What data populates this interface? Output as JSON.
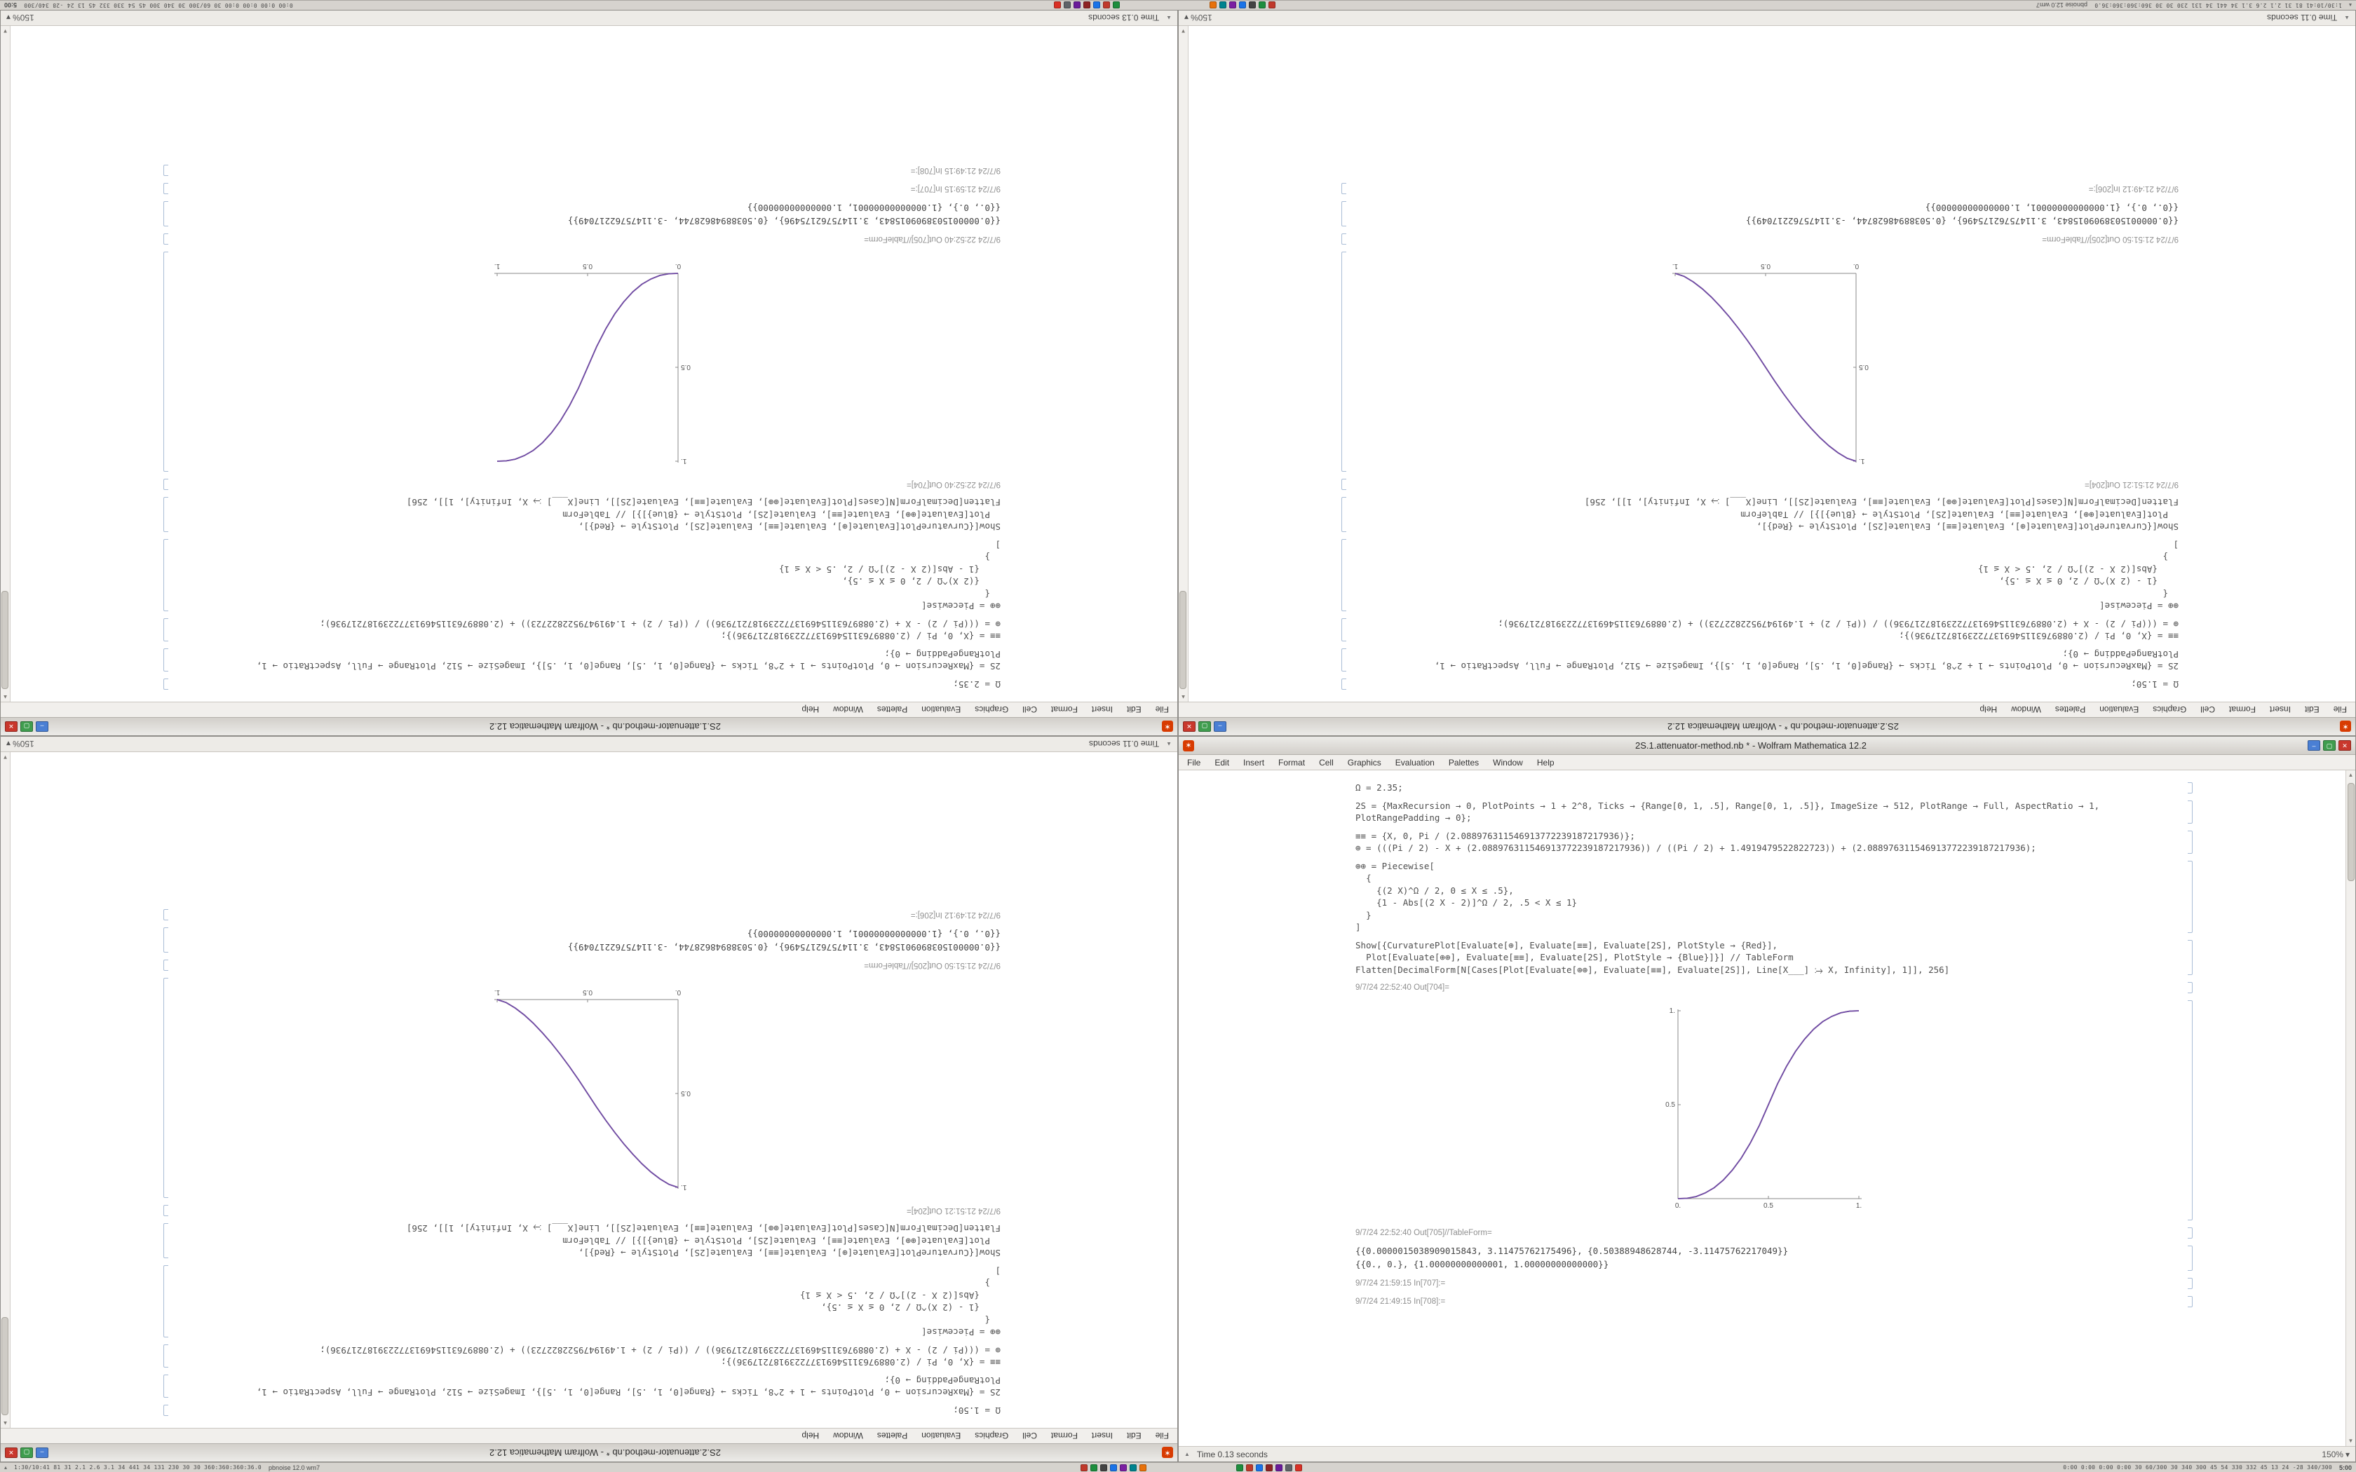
{
  "taskbar": {
    "left_stats": "1:30/10:41  81 31  2.1 2.6 3.1  34 441 34 131 230 30 30  360:360:360:36.0",
    "right_stats": "0:00 0:00 0:00 0:00  30 60/300 30 340 300 45 54 330 332 45 13 24 -28  340/300",
    "session_label": "pbnoise 12.0 wm7",
    "clock": "5:00",
    "icons": [
      {
        "name": "taskbar-app-icon-1",
        "color": "#c0392b"
      },
      {
        "name": "taskbar-app-icon-2",
        "color": "#1e8e3e"
      },
      {
        "name": "taskbar-app-icon-3",
        "color": "#444444"
      },
      {
        "name": "taskbar-app-icon-4",
        "color": "#1a73e8"
      },
      {
        "name": "taskbar-app-icon-5",
        "color": "#7b1fa2"
      },
      {
        "name": "taskbar-app-icon-6",
        "color": "#00838f"
      },
      {
        "name": "taskbar-app-icon-7",
        "color": "#e8710a"
      },
      {
        "name": "taskbar-app-icon-8",
        "color": "#1e8e3e"
      },
      {
        "name": "taskbar-app-icon-9",
        "color": "#c0392b"
      },
      {
        "name": "taskbar-app-icon-10",
        "color": "#1a73e8"
      },
      {
        "name": "taskbar-app-icon-11",
        "color": "#8e2424"
      },
      {
        "name": "taskbar-app-icon-12",
        "color": "#6a1b9a"
      },
      {
        "name": "taskbar-app-icon-13",
        "color": "#5f6368"
      },
      {
        "name": "taskbar-app-icon-14",
        "color": "#d93025"
      }
    ]
  },
  "menu": {
    "items": [
      "File",
      "Edit",
      "Insert",
      "Format",
      "Cell",
      "Graphics",
      "Evaluation",
      "Palettes",
      "Window",
      "Help"
    ]
  },
  "notebooks": {
    "A": {
      "title": "2S.1.attenuator-method.nb * - Wolfram Mathematica 12.2",
      "status_time": "Time 0.13 seconds",
      "zoom": "150%",
      "cells": [
        {
          "kind": "code",
          "lines": [
            "Ω = 2.35;"
          ]
        },
        {
          "kind": "code",
          "lines": [
            "2S = {MaxRecursion → 0, PlotPoints → 1 + 2^8, Ticks → {Range[0, 1, .5], Range[0, 1, .5]}, ImageSize → 512, PlotRange → Full, AspectRatio → 1, PlotRangePadding → 0};"
          ]
        },
        {
          "kind": "code",
          "lines": [
            "≡≡ = {X, 0, Pi / (2.088976311546913772239187217936)};",
            "⊕ = (((Pi / 2) - X + (2.088976311546913772239187217936)) / ((Pi / 2) + 1.4919479522822723)) + (2.088976311546913772239187217936);"
          ]
        },
        {
          "kind": "code",
          "lines": [
            "⊕⊕ = Piecewise[",
            "  {",
            "    {(2 X)^Ω / 2, 0 ≤ X ≤ .5},",
            "    {1 - Abs[(2 X - 2)]^Ω / 2, .5 < X ≤ 1}",
            "  }",
            "]"
          ]
        },
        {
          "kind": "code",
          "lines": [
            "Show[{CurvaturePlot[Evaluate[⊕], Evaluate[≡≡], Evaluate[2S], PlotStyle → {Red}],",
            "  Plot[Evaluate[⊕⊕], Evaluate[≡≡], Evaluate[2S], PlotStyle → {Blue}]}] // TableForm",
            "Flatten[DecimalForm[N[Cases[Plot[Evaluate[⊕⊕], Evaluate[≡≡], Evaluate[2S]], Line[X___] ⧴ X, Infinity], 1]], 256]"
          ]
        },
        {
          "kind": "stamp",
          "text": "9/7/24 22:52:40   Out[704]="
        },
        {
          "kind": "plot",
          "chart": "ascending"
        },
        {
          "kind": "stamp",
          "text": "9/7/24 22:52:40   Out[705]//TableForm="
        },
        {
          "kind": "output",
          "lines": [
            "{{0.0000015038909015843, 3.11475762175496}, {0.50388948628744, -3.11475762217049}}",
            "{{0., 0.}, {1.00000000000001, 1.00000000000000}}"
          ]
        },
        {
          "kind": "stamp",
          "text": "9/7/24 21:59:15   In[707]:="
        },
        {
          "kind": "stamp",
          "text": "9/7/24 21:49:15   In[708]:="
        }
      ]
    },
    "B": {
      "title": "2S.2.attenuator-method.nb * - Wolfram Mathematica 12.2",
      "status_time": "Time 0.11 seconds",
      "zoom": "150%",
      "cells": [
        {
          "kind": "code",
          "lines": [
            "Ω = 1.50;"
          ]
        },
        {
          "kind": "code",
          "lines": [
            "2S = {MaxRecursion → 0, PlotPoints → 1 + 2^8, Ticks → {Range[0, 1, .5], Range[0, 1, .5]}, ImageSize → 512, PlotRange → Full, AspectRatio → 1, PlotRangePadding → 0};"
          ]
        },
        {
          "kind": "code",
          "lines": [
            "≡≡ = {X, 0, Pi / (2.088976311546913772239187217936)};",
            "⊕ = (((Pi / 2) - X + (2.088976311546913772239187217936)) / ((Pi / 2) + 1.4919479522822723)) + (2.088976311546913772239187217936);"
          ]
        },
        {
          "kind": "code",
          "lines": [
            "⊕⊕ = Piecewise[",
            "  {",
            "    {1 - (2 X)^Ω / 2, 0 ≤ X ≤ .5},",
            "    {Abs[(2 X - 2)]^Ω / 2, .5 < X ≤ 1}",
            "  }",
            "]"
          ]
        },
        {
          "kind": "code",
          "lines": [
            "Show[{CurvaturePlot[Evaluate[⊕], Evaluate[≡≡], Evaluate[2S], PlotStyle → {Red}],",
            "  Plot[Evaluate[⊕⊕], Evaluate[≡≡], Evaluate[2S], PlotStyle → {Blue}]}] // TableForm",
            "Flatten[DecimalForm[N[Cases[Plot[Evaluate[⊕⊕], Evaluate[≡≡], Evaluate[2S]], Line[X___] ⧴ X, Infinity], 1]], 256]"
          ]
        },
        {
          "kind": "stamp",
          "text": "9/7/24 21:51:21   Out[204]="
        },
        {
          "kind": "plot",
          "chart": "descending"
        },
        {
          "kind": "stamp",
          "text": "9/7/24 21:51:50   Out[205]//TableForm="
        },
        {
          "kind": "output",
          "lines": [
            "{{0.0000015038909015843, 3.11475762175496}, {0.50388948628744, -3.11475762217049}}",
            "{{0., 0.}, {1.00000000000001, 1.00000000000000}}"
          ]
        },
        {
          "kind": "stamp",
          "text": "9/7/24 21:49:12   In[206]:="
        }
      ]
    }
  },
  "windows": [
    {
      "id": "top-left",
      "notebook": "A",
      "rotated": true
    },
    {
      "id": "top-right",
      "notebook": "B",
      "rotated": true
    },
    {
      "id": "bottom-left",
      "notebook": "B",
      "rotated": true
    },
    {
      "id": "bottom-right",
      "notebook": "A",
      "rotated": false
    }
  ],
  "chart_data": [
    {
      "id": "ascending",
      "type": "line",
      "title": "",
      "xlabel": "",
      "ylabel": "",
      "xlim": [
        0,
        1
      ],
      "ylim": [
        0,
        1
      ],
      "grid": false,
      "legend": false,
      "xticks": [
        [
          0,
          "0."
        ],
        [
          0.5,
          "0.5"
        ],
        [
          1,
          "1."
        ]
      ],
      "yticks": [
        [
          0.5,
          "0.5"
        ],
        [
          1,
          "1."
        ]
      ],
      "series": [
        {
          "name": "CurvaturePlot (Red)",
          "color": "#c83a50"
        },
        {
          "name": "Plot (Blue)",
          "color": "#4455cc"
        }
      ],
      "points": [
        [
          0,
          0
        ],
        [
          0.05,
          0.002
        ],
        [
          0.1,
          0.011
        ],
        [
          0.15,
          0.03
        ],
        [
          0.2,
          0.058
        ],
        [
          0.25,
          0.098
        ],
        [
          0.3,
          0.151
        ],
        [
          0.35,
          0.216
        ],
        [
          0.4,
          0.296
        ],
        [
          0.45,
          0.39
        ],
        [
          0.5,
          0.5
        ],
        [
          0.55,
          0.61
        ],
        [
          0.6,
          0.704
        ],
        [
          0.65,
          0.784
        ],
        [
          0.7,
          0.849
        ],
        [
          0.75,
          0.902
        ],
        [
          0.8,
          0.942
        ],
        [
          0.85,
          0.97
        ],
        [
          0.9,
          0.989
        ],
        [
          0.95,
          0.998
        ],
        [
          1,
          1
        ]
      ]
    },
    {
      "id": "descending",
      "type": "line",
      "title": "",
      "xlabel": "",
      "ylabel": "",
      "xlim": [
        0,
        1
      ],
      "ylim": [
        0,
        1
      ],
      "grid": false,
      "legend": false,
      "xticks": [
        [
          0,
          "0."
        ],
        [
          0.5,
          "0.5"
        ],
        [
          1,
          "1."
        ]
      ],
      "yticks": [
        [
          0.5,
          "0.5"
        ],
        [
          1,
          "1."
        ]
      ],
      "series": [
        {
          "name": "CurvaturePlot (Red)",
          "color": "#c83a50"
        },
        {
          "name": "Plot (Blue)",
          "color": "#4455cc"
        }
      ],
      "points": [
        [
          0,
          1
        ],
        [
          0.05,
          0.984
        ],
        [
          0.1,
          0.955
        ],
        [
          0.15,
          0.918
        ],
        [
          0.2,
          0.874
        ],
        [
          0.25,
          0.823
        ],
        [
          0.3,
          0.768
        ],
        [
          0.35,
          0.707
        ],
        [
          0.4,
          0.642
        ],
        [
          0.45,
          0.573
        ],
        [
          0.5,
          0.5
        ],
        [
          0.55,
          0.427
        ],
        [
          0.6,
          0.358
        ],
        [
          0.65,
          0.293
        ],
        [
          0.7,
          0.232
        ],
        [
          0.75,
          0.177
        ],
        [
          0.8,
          0.126
        ],
        [
          0.85,
          0.082
        ],
        [
          0.9,
          0.045
        ],
        [
          0.95,
          0.016
        ],
        [
          1,
          0
        ]
      ]
    }
  ]
}
